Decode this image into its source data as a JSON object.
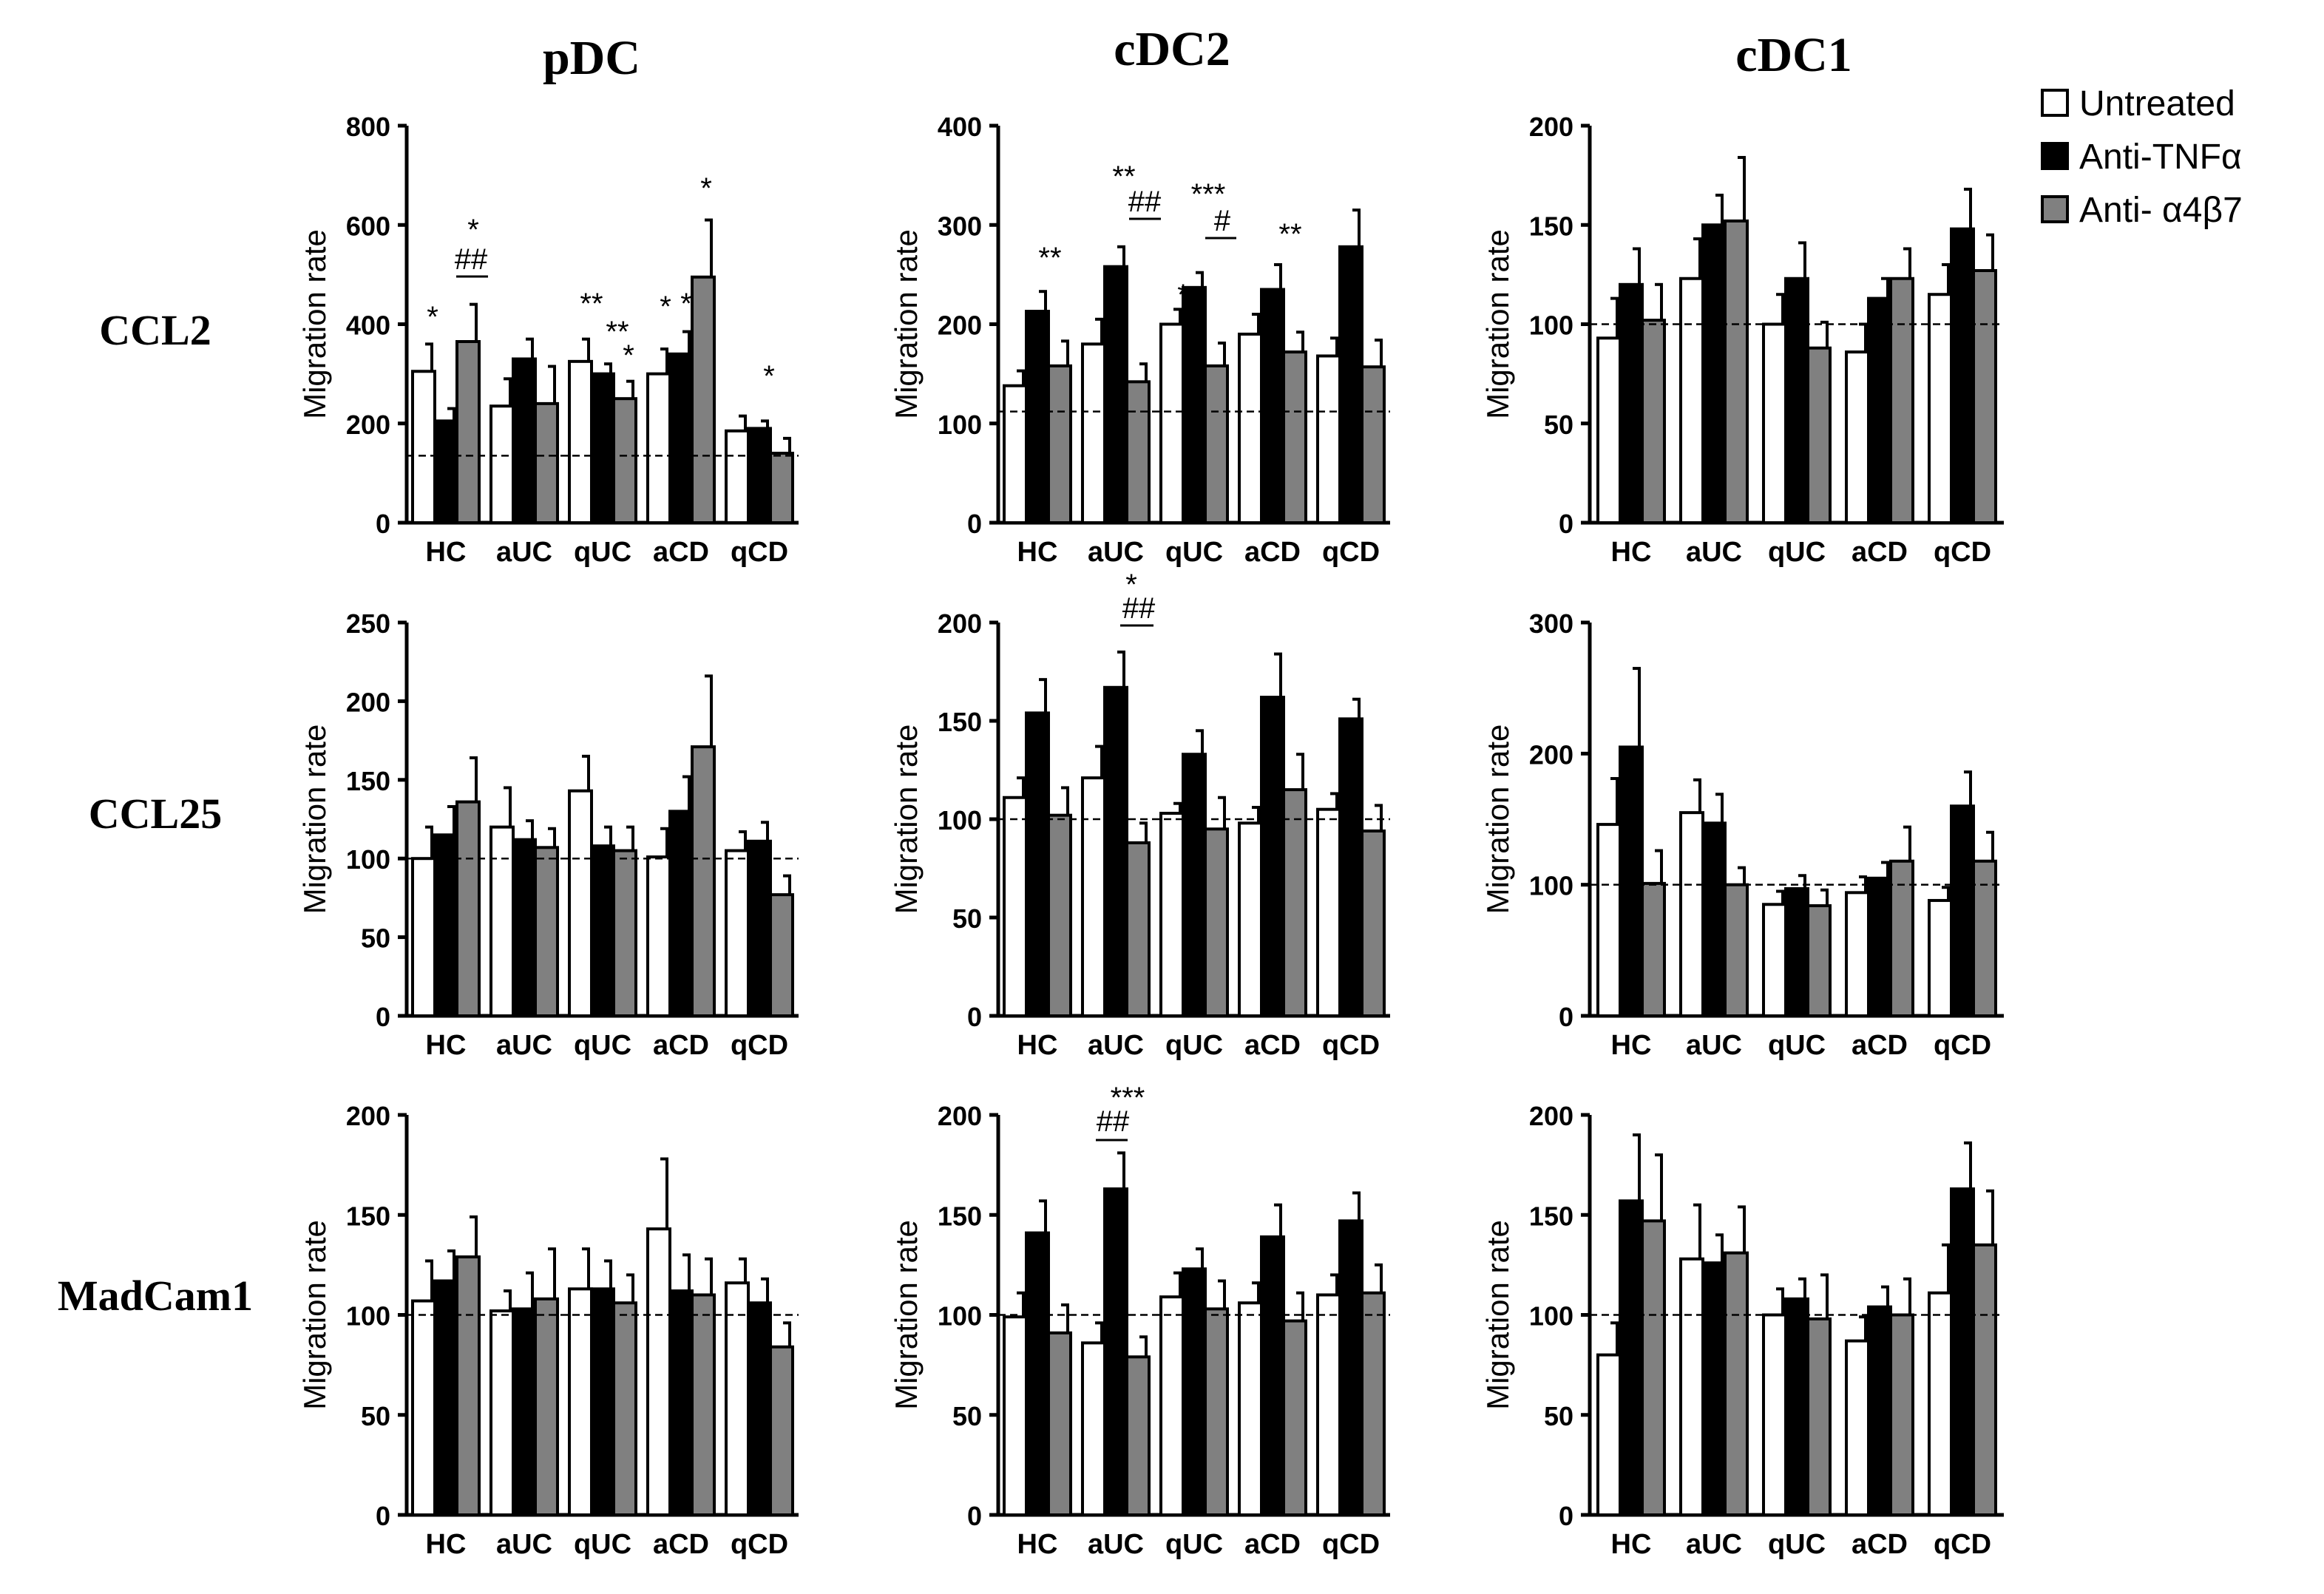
{
  "column_titles": [
    "pDC",
    "cDC2",
    "cDC1"
  ],
  "row_labels": [
    "CCL2",
    "CCL25",
    "MadCam1"
  ],
  "legend": [
    {
      "label": "Untreated",
      "color": "#ffffff"
    },
    {
      "label": "Anti-TNFα",
      "color": "#000000"
    },
    {
      "label": "Anti- α4β7",
      "color": "#808080"
    }
  ],
  "chart_data": [
    {
      "type": "bar",
      "title": "",
      "row": "CCL2",
      "column": "pDC",
      "ylabel": "Migration rate",
      "categories": [
        "HC",
        "aUC",
        "qUC",
        "aCD",
        "qCD"
      ],
      "ylim": [
        0,
        800
      ],
      "yticks": [
        0,
        200,
        400,
        600,
        800
      ],
      "baseline": 135,
      "series": [
        {
          "name": "Untreated",
          "values": [
            305,
            235,
            325,
            300,
            185
          ],
          "errors": [
            55,
            55,
            45,
            50,
            30
          ]
        },
        {
          "name": "Anti-TNFα",
          "values": [
            205,
            330,
            300,
            340,
            190
          ],
          "errors": [
            25,
            40,
            20,
            45,
            15
          ]
        },
        {
          "name": "Anti- α4β7",
          "values": [
            365,
            240,
            250,
            495,
            140
          ],
          "errors": [
            75,
            75,
            35,
            115,
            30
          ]
        }
      ],
      "annotations": [
        "*",
        "*",
        "##",
        "**",
        "**",
        "*",
        "*",
        "*",
        "*",
        "*"
      ]
    },
    {
      "type": "bar",
      "title": "",
      "row": "CCL2",
      "column": "cDC2",
      "ylabel": "Migration rate",
      "categories": [
        "HC",
        "aUC",
        "qUC",
        "aCD",
        "qCD"
      ],
      "ylim": [
        0,
        400
      ],
      "yticks": [
        0,
        100,
        200,
        300,
        400
      ],
      "baseline": 112,
      "series": [
        {
          "name": "Untreated",
          "values": [
            138,
            180,
            200,
            190,
            168
          ],
          "errors": [
            15,
            25,
            15,
            20,
            18
          ]
        },
        {
          "name": "Anti-TNFα",
          "values": [
            213,
            258,
            237,
            235,
            278
          ],
          "errors": [
            20,
            20,
            15,
            25,
            37
          ]
        },
        {
          "name": "Anti- α4β7",
          "values": [
            158,
            142,
            158,
            172,
            157
          ],
          "errors": [
            25,
            18,
            23,
            20,
            27
          ]
        }
      ],
      "annotations": [
        "**",
        "**",
        "##",
        "*",
        "***",
        "#",
        "**"
      ]
    },
    {
      "type": "bar",
      "title": "",
      "row": "CCL2",
      "column": "cDC1",
      "ylabel": "Migration rate",
      "categories": [
        "HC",
        "aUC",
        "qUC",
        "aCD",
        "qCD"
      ],
      "ylim": [
        0,
        200
      ],
      "yticks": [
        0,
        50,
        100,
        150,
        200
      ],
      "baseline": 100,
      "series": [
        {
          "name": "Untreated",
          "values": [
            93,
            123,
            100,
            86,
            115
          ],
          "errors": [
            20,
            20,
            15,
            14,
            15
          ]
        },
        {
          "name": "Anti-TNFα",
          "values": [
            120,
            150,
            123,
            113,
            148
          ],
          "errors": [
            18,
            15,
            18,
            10,
            20
          ]
        },
        {
          "name": "Anti- α4β7",
          "values": [
            102,
            152,
            88,
            123,
            127
          ],
          "errors": [
            18,
            32,
            13,
            15,
            18
          ]
        }
      ],
      "annotations": []
    },
    {
      "type": "bar",
      "title": "",
      "row": "CCL25",
      "column": "pDC",
      "ylabel": "Migration rate",
      "categories": [
        "HC",
        "aUC",
        "qUC",
        "aCD",
        "qCD"
      ],
      "ylim": [
        0,
        250
      ],
      "yticks": [
        0,
        50,
        100,
        150,
        200,
        250
      ],
      "baseline": 100,
      "series": [
        {
          "name": "Untreated",
          "values": [
            100,
            120,
            143,
            101,
            105
          ],
          "errors": [
            20,
            25,
            22,
            18,
            12
          ]
        },
        {
          "name": "Anti-TNFα",
          "values": [
            115,
            112,
            108,
            130,
            111
          ],
          "errors": [
            18,
            12,
            12,
            22,
            12
          ]
        },
        {
          "name": "Anti- α4β7",
          "values": [
            136,
            107,
            105,
            171,
            77
          ],
          "errors": [
            28,
            12,
            15,
            45,
            12
          ]
        }
      ],
      "annotations": []
    },
    {
      "type": "bar",
      "title": "",
      "row": "CCL25",
      "column": "cDC2",
      "ylabel": "Migration rate",
      "categories": [
        "HC",
        "aUC",
        "qUC",
        "aCD",
        "qCD"
      ],
      "ylim": [
        0,
        200
      ],
      "yticks": [
        0,
        50,
        100,
        150,
        200
      ],
      "baseline": 100,
      "series": [
        {
          "name": "Untreated",
          "values": [
            111,
            121,
            103,
            98,
            105
          ],
          "errors": [
            10,
            16,
            5,
            8,
            8
          ]
        },
        {
          "name": "Anti-TNFα",
          "values": [
            154,
            167,
            133,
            162,
            151
          ],
          "errors": [
            17,
            18,
            12,
            22,
            10
          ]
        },
        {
          "name": "Anti- α4β7",
          "values": [
            102,
            88,
            95,
            115,
            94
          ],
          "errors": [
            14,
            10,
            16,
            18,
            13
          ]
        }
      ],
      "annotations": [
        "*",
        "##"
      ]
    },
    {
      "type": "bar",
      "title": "",
      "row": "CCL25",
      "column": "cDC1",
      "ylabel": "Migration rate",
      "categories": [
        "HC",
        "aUC",
        "qUC",
        "aCD",
        "qCD"
      ],
      "ylim": [
        0,
        300
      ],
      "yticks": [
        0,
        100,
        200,
        300
      ],
      "baseline": 100,
      "series": [
        {
          "name": "Untreated",
          "values": [
            146,
            155,
            85,
            94,
            88
          ],
          "errors": [
            35,
            25,
            10,
            12,
            10
          ]
        },
        {
          "name": "Anti-TNFα",
          "values": [
            205,
            147,
            97,
            105,
            160
          ],
          "errors": [
            60,
            22,
            10,
            12,
            26
          ]
        },
        {
          "name": "Anti- α4β7",
          "values": [
            101,
            100,
            84,
            118,
            118
          ],
          "errors": [
            25,
            13,
            12,
            26,
            22
          ]
        }
      ],
      "annotations": []
    },
    {
      "type": "bar",
      "title": "",
      "row": "MadCam1",
      "column": "pDC",
      "ylabel": "Migration rate",
      "categories": [
        "HC",
        "aUC",
        "qUC",
        "aCD",
        "qCD"
      ],
      "ylim": [
        0,
        200
      ],
      "yticks": [
        0,
        50,
        100,
        150,
        200
      ],
      "baseline": 100,
      "series": [
        {
          "name": "Untreated",
          "values": [
            107,
            102,
            113,
            143,
            116
          ],
          "errors": [
            20,
            10,
            20,
            35,
            12
          ]
        },
        {
          "name": "Anti-TNFα",
          "values": [
            117,
            103,
            113,
            112,
            106
          ],
          "errors": [
            15,
            18,
            14,
            18,
            12
          ]
        },
        {
          "name": "Anti- α4β7",
          "values": [
            129,
            108,
            106,
            110,
            84
          ],
          "errors": [
            20,
            25,
            14,
            18,
            12
          ]
        }
      ],
      "annotations": []
    },
    {
      "type": "bar",
      "title": "",
      "row": "MadCam1",
      "column": "cDC2",
      "ylabel": "Migration rate",
      "categories": [
        "HC",
        "aUC",
        "qUC",
        "aCD",
        "qCD"
      ],
      "ylim": [
        0,
        200
      ],
      "yticks": [
        0,
        50,
        100,
        150,
        200
      ],
      "baseline": 100,
      "series": [
        {
          "name": "Untreated",
          "values": [
            99,
            86,
            109,
            106,
            110
          ],
          "errors": [
            12,
            10,
            12,
            10,
            10
          ]
        },
        {
          "name": "Anti-TNFα",
          "values": [
            141,
            163,
            123,
            139,
            147
          ],
          "errors": [
            16,
            18,
            10,
            16,
            14
          ]
        },
        {
          "name": "Anti- α4β7",
          "values": [
            91,
            79,
            103,
            97,
            111
          ],
          "errors": [
            14,
            10,
            14,
            14,
            14
          ]
        }
      ],
      "annotations": [
        "##",
        "***",
        "*"
      ]
    },
    {
      "type": "bar",
      "title": "",
      "row": "MadCam1",
      "column": "cDC1",
      "ylabel": "Migration rate",
      "categories": [
        "HC",
        "aUC",
        "qUC",
        "aCD",
        "qCD"
      ],
      "ylim": [
        0,
        200
      ],
      "yticks": [
        0,
        50,
        100,
        150,
        200
      ],
      "baseline": 100,
      "series": [
        {
          "name": "Untreated",
          "values": [
            80,
            128,
            100,
            87,
            111
          ],
          "errors": [
            16,
            27,
            13,
            12,
            24
          ]
        },
        {
          "name": "Anti-TNFα",
          "values": [
            157,
            126,
            108,
            104,
            163
          ],
          "errors": [
            33,
            14,
            10,
            10,
            23
          ]
        },
        {
          "name": "Anti- α4β7",
          "values": [
            147,
            131,
            98,
            100,
            135
          ],
          "errors": [
            33,
            23,
            22,
            18,
            27
          ]
        }
      ],
      "annotations": []
    }
  ]
}
